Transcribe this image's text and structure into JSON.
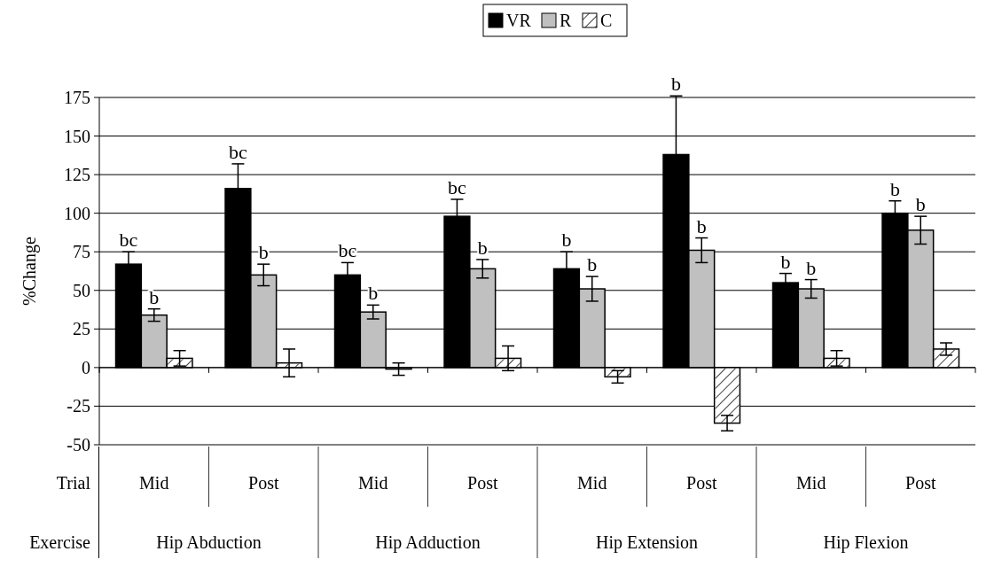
{
  "chart_data": {
    "type": "bar",
    "ylabel": "%Change",
    "categories": [
      "Mid",
      "Post",
      "Mid",
      "Post",
      "Mid",
      "Post",
      "Mid",
      "Post"
    ],
    "series": [
      {
        "name": "VR",
        "color": "#000000",
        "values": [
          67,
          116,
          60,
          98,
          64,
          138,
          55,
          100
        ],
        "errors": [
          8,
          16,
          8,
          11,
          11,
          38,
          6,
          8
        ],
        "value_labels": [
          "bc",
          "bc",
          "bc",
          "bc",
          "b",
          "b",
          "b",
          "b"
        ]
      },
      {
        "name": "R",
        "color": "#c0c0c0",
        "values": [
          34,
          60,
          36,
          64,
          51,
          76,
          51,
          89
        ],
        "errors": [
          4,
          7,
          4.5,
          6,
          8,
          8,
          6,
          9
        ],
        "value_labels": [
          "b",
          "b",
          "b",
          "b",
          "b",
          "b",
          "b",
          "b"
        ]
      },
      {
        "name": "C",
        "color": "#ffffff",
        "values": [
          6,
          3,
          -1,
          6,
          -6,
          -36,
          6,
          12
        ],
        "errors": [
          5,
          9,
          4,
          8,
          4,
          5,
          5,
          4
        ]
      }
    ],
    "ylim": [
      -50,
      175
    ],
    "yticks": [
      -50,
      -25,
      0,
      25,
      50,
      75,
      100,
      125,
      150,
      175
    ],
    "grid": "y",
    "legend": "top",
    "annotations": [
      "Trial",
      "Exercise",
      "Hip Abduction",
      "Hip Adduction",
      "Hip Extension",
      "Hip Flexion"
    ]
  }
}
